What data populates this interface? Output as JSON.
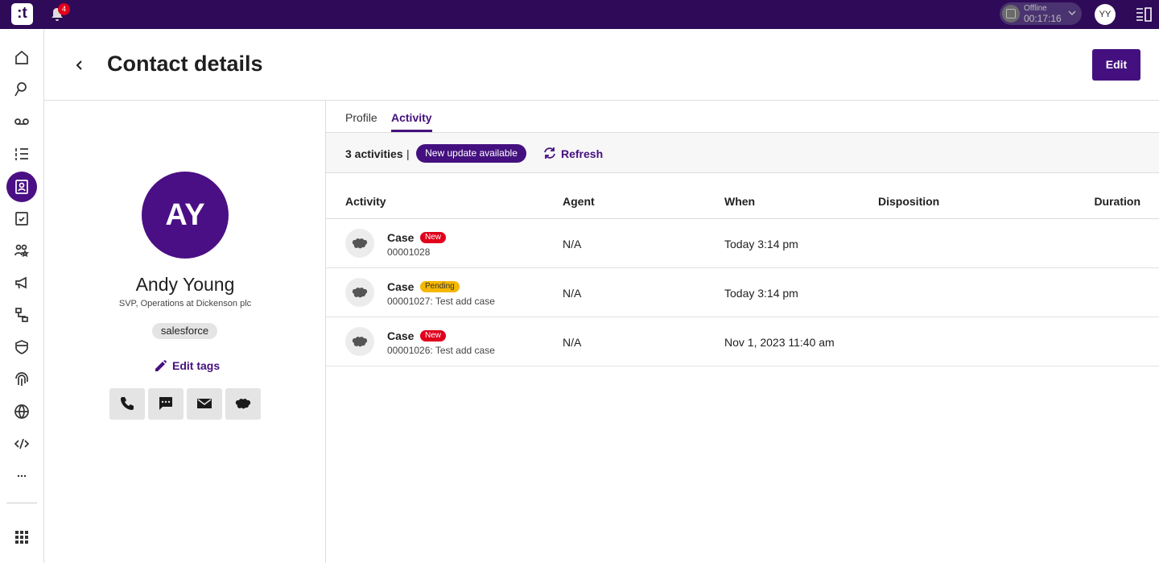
{
  "topbar": {
    "notifications": "4",
    "status": "Offline",
    "timer": "00:17:16",
    "user_initials": "YY"
  },
  "header": {
    "title": "Contact details",
    "edit_button": "Edit"
  },
  "contact": {
    "initials": "AY",
    "name": "Andy Young",
    "subtitle": "SVP, Operations at Dickenson plc",
    "tag": "salesforce",
    "edit_tags": "Edit tags"
  },
  "tabs": [
    "Profile",
    "Activity"
  ],
  "active_tab": 1,
  "activity_bar": {
    "count": "3 activities",
    "separator": "|",
    "update": "New update available",
    "refresh": "Refresh"
  },
  "table": {
    "columns": [
      "Activity",
      "Agent",
      "When",
      "Disposition",
      "Duration"
    ],
    "rows": [
      {
        "title": "Case",
        "badge": "New",
        "badge_color": "#e0001b",
        "subtitle": "00001028",
        "agent": "N/A",
        "when": "Today 3:14 pm"
      },
      {
        "title": "Case",
        "badge": "Pending",
        "badge_color": "#f5b700",
        "subtitle": "00001027: Test add case",
        "agent": "N/A",
        "when": "Today 3:14 pm"
      },
      {
        "title": "Case",
        "badge": "New",
        "badge_color": "#e0001b",
        "subtitle": "00001026: Test add case",
        "agent": "N/A",
        "when": "Nov 1, 2023 11:40 am"
      }
    ]
  }
}
